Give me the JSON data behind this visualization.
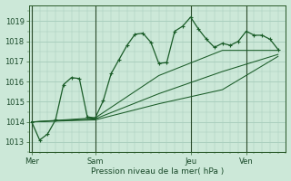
{
  "background_color": "#cce8d8",
  "grid_color": "#aacfbe",
  "line_color": "#1a5c28",
  "marker_color": "#1a5c28",
  "xlabel": "Pression niveau de la mer( hPa )",
  "ylim": [
    1012.5,
    1019.8
  ],
  "yticks": [
    1013,
    1014,
    1015,
    1016,
    1017,
    1018,
    1019
  ],
  "day_labels": [
    "Mer",
    "Sam",
    "Jeu",
    "Ven"
  ],
  "day_positions": [
    0,
    8,
    20,
    27
  ],
  "xlim": [
    -0.3,
    32
  ],
  "series1": {
    "x": [
      0,
      1,
      2,
      3,
      4,
      5,
      6,
      7,
      8,
      9,
      10,
      11,
      12,
      13,
      14,
      15,
      16,
      17,
      18,
      19,
      20,
      21,
      22,
      23,
      24,
      25,
      26,
      27,
      28,
      29,
      30,
      31
    ],
    "y": [
      1014.0,
      1013.1,
      1013.4,
      1014.1,
      1015.85,
      1016.2,
      1016.15,
      1014.25,
      1014.2,
      1015.05,
      1016.4,
      1017.1,
      1017.8,
      1018.35,
      1018.4,
      1017.95,
      1016.9,
      1016.95,
      1018.5,
      1018.75,
      1019.2,
      1018.6,
      1018.1,
      1017.7,
      1017.9,
      1017.8,
      1018.0,
      1018.5,
      1018.3,
      1018.3,
      1018.1,
      1017.6
    ]
  },
  "series2": {
    "x": [
      0,
      8,
      16,
      24,
      31
    ],
    "y": [
      1014.0,
      1014.2,
      1016.3,
      1017.55,
      1017.55
    ]
  },
  "series3": {
    "x": [
      0,
      8,
      16,
      24,
      31
    ],
    "y": [
      1014.0,
      1014.15,
      1015.4,
      1016.5,
      1017.35
    ]
  },
  "series4": {
    "x": [
      0,
      8,
      16,
      24,
      31
    ],
    "y": [
      1014.0,
      1014.1,
      1014.9,
      1015.6,
      1017.25
    ]
  }
}
